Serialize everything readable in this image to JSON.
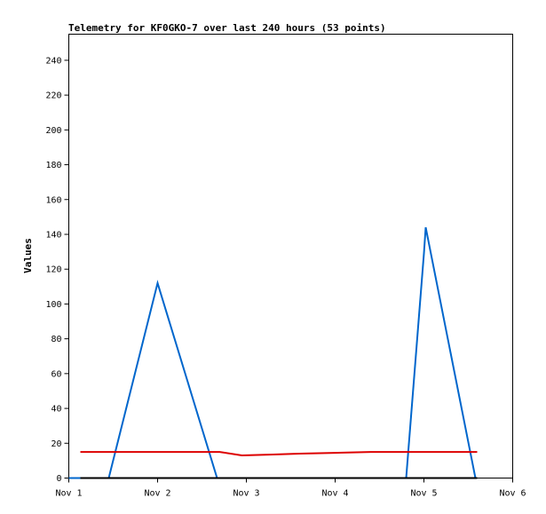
{
  "chart_data": {
    "type": "line",
    "title": "Telemetry for KF0GKO-7 over last 240 hours (53 points)",
    "xlabel": "",
    "ylabel": "Values",
    "x_ticks": [
      "Nov 1",
      "Nov 2",
      "Nov 3",
      "Nov 4",
      "Nov 5",
      "Nov 6"
    ],
    "xlim": [
      0,
      5
    ],
    "ylim": [
      0,
      255
    ],
    "y_ticks": [
      0,
      20,
      40,
      60,
      80,
      100,
      120,
      140,
      160,
      180,
      200,
      220,
      240
    ],
    "grid": false,
    "series": [
      {
        "color": "#0066cc",
        "x": [
          0.0,
          0.45,
          1.0,
          1.67,
          3.62,
          3.8,
          4.0,
          4.02,
          4.58
        ],
        "y": [
          0,
          0,
          112,
          0,
          0,
          0,
          129,
          144,
          0
        ]
      },
      {
        "color": "#dd0000",
        "x": [
          0.13,
          0.5,
          1.0,
          1.7,
          1.95,
          2.3,
          2.6,
          3.0,
          3.4,
          3.6,
          4.0,
          4.6
        ],
        "y": [
          15,
          15,
          15,
          15,
          13,
          13.5,
          14,
          14.5,
          15,
          15,
          15,
          15
        ]
      },
      {
        "color": "#000000",
        "x": [
          0.13,
          4.6
        ],
        "y": [
          0,
          0
        ]
      }
    ]
  }
}
